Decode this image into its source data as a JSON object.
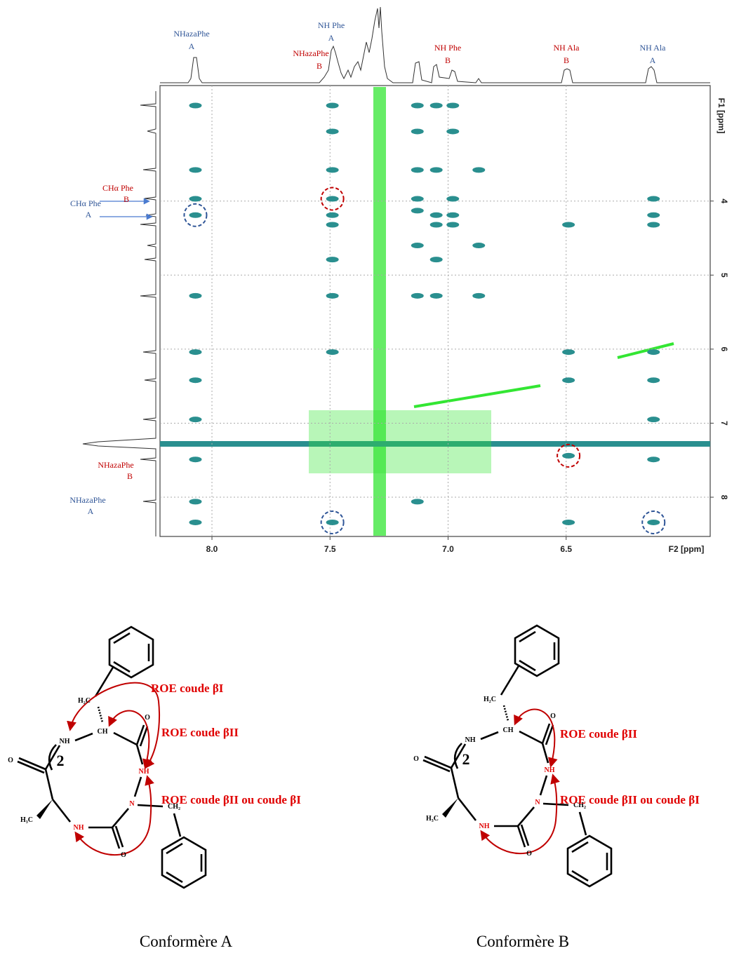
{
  "spectrum": {
    "x_label": "F2 [ppm]",
    "y_label": "F1 [ppm]",
    "xlim": [
      8.22,
      5.89
    ],
    "ylim": [
      2.44,
      8.53
    ],
    "xticks": [
      {
        "value": 8,
        "label": "8.0"
      },
      {
        "value": 7.5,
        "label": "7.5"
      },
      {
        "value": 7,
        "label": "7.0"
      },
      {
        "value": 6.5,
        "label": "6.5"
      }
    ],
    "yticks": [
      4,
      5,
      6,
      7,
      8
    ],
    "top_labels": [
      {
        "lines": [
          "NHazaPhe",
          "A"
        ],
        "color": "#2f5597"
      },
      {
        "lines": [
          "NH Phe",
          "A"
        ],
        "color": "#2f5597"
      },
      {
        "lines": [
          "NHazaPhe",
          "B"
        ],
        "color": "#c00000"
      },
      {
        "lines": [
          "NH Phe",
          "B"
        ],
        "color": "#c00000"
      },
      {
        "lines": [
          "NH Ala",
          "B"
        ],
        "color": "#c00000"
      },
      {
        "lines": [
          "NH Ala",
          "A"
        ],
        "color": "#2f5597"
      }
    ],
    "side_labels": [
      {
        "lines": [
          "CHα Phe",
          "B"
        ],
        "color": "#c00000"
      },
      {
        "lines": [
          "CHα Phe",
          "A"
        ],
        "color": "#2f5597"
      },
      {
        "lines": [
          "NHazaPhe",
          "B"
        ],
        "color": "#c00000"
      },
      {
        "lines": [
          "NHazaPhe",
          "A"
        ],
        "color": "#2f5597"
      }
    ],
    "peak_color": "#2a8f8f",
    "peaks": [
      [
        8.07,
        2.71
      ],
      [
        8.07,
        3.58
      ],
      [
        8.07,
        3.97
      ],
      [
        8.07,
        4.19
      ],
      [
        8.07,
        5.28
      ],
      [
        8.07,
        6.04
      ],
      [
        8.07,
        6.42
      ],
      [
        8.07,
        6.95
      ],
      [
        8.07,
        7.49
      ],
      [
        8.07,
        8.06
      ],
      [
        8.07,
        8.34
      ],
      [
        7.49,
        2.71
      ],
      [
        7.49,
        3.06
      ],
      [
        7.49,
        3.58
      ],
      [
        7.49,
        3.97
      ],
      [
        7.49,
        4.19
      ],
      [
        7.49,
        4.32
      ],
      [
        7.49,
        4.79
      ],
      [
        7.49,
        5.28
      ],
      [
        7.49,
        6.04
      ],
      [
        7.49,
        8.34
      ],
      [
        7.13,
        2.71
      ],
      [
        7.13,
        3.06
      ],
      [
        7.13,
        3.58
      ],
      [
        7.13,
        3.97
      ],
      [
        7.13,
        4.13
      ],
      [
        7.13,
        4.6
      ],
      [
        7.13,
        5.28
      ],
      [
        7.13,
        8.06
      ],
      [
        7.05,
        2.71
      ],
      [
        7.05,
        3.58
      ],
      [
        7.05,
        4.19
      ],
      [
        7.05,
        4.32
      ],
      [
        7.05,
        4.79
      ],
      [
        7.05,
        5.28
      ],
      [
        6.98,
        2.71
      ],
      [
        6.98,
        3.06
      ],
      [
        6.98,
        3.97
      ],
      [
        6.98,
        4.19
      ],
      [
        6.98,
        4.32
      ],
      [
        6.87,
        3.58
      ],
      [
        6.87,
        4.6
      ],
      [
        6.87,
        5.28
      ],
      [
        6.49,
        4.32
      ],
      [
        6.49,
        6.04
      ],
      [
        6.49,
        6.42
      ],
      [
        6.49,
        7.44
      ],
      [
        6.49,
        8.34
      ],
      [
        6.13,
        3.97
      ],
      [
        6.13,
        4.19
      ],
      [
        6.13,
        4.32
      ],
      [
        6.13,
        6.04
      ],
      [
        6.13,
        6.42
      ],
      [
        6.13,
        6.95
      ],
      [
        6.13,
        7.49
      ],
      [
        6.13,
        8.34
      ]
    ],
    "highlights": [
      {
        "x": 7.49,
        "y": 3.97,
        "color": "#c00000"
      },
      {
        "x": 6.49,
        "y": 7.44,
        "color": "#c00000"
      },
      {
        "x": 8.07,
        "y": 4.19,
        "color": "#2f5597"
      },
      {
        "x": 7.49,
        "y": 8.34,
        "color": "#2f5597"
      },
      {
        "x": 6.13,
        "y": 8.34,
        "color": "#2f5597"
      }
    ]
  },
  "structures": [
    {
      "caption": "Conformère A",
      "roe_labels": [
        "ROE coude βI",
        "ROE coude βII",
        "ROE coude βII ou coude  βI"
      ],
      "atoms": [
        "H₂C",
        "CH",
        "O",
        "NH",
        "NH",
        "N",
        "CH₂",
        "O",
        "NH",
        "H₃C",
        "O",
        "2"
      ]
    },
    {
      "caption": "Conformère B",
      "roe_labels": [
        "ROE coude βII",
        "ROE coude βII ou coude  βI"
      ],
      "atoms": [
        "H₂C",
        "CH",
        "O",
        "NH",
        "NH",
        "N",
        "CH₂",
        "O",
        "NH",
        "H₃C",
        "O",
        "2"
      ]
    }
  ]
}
